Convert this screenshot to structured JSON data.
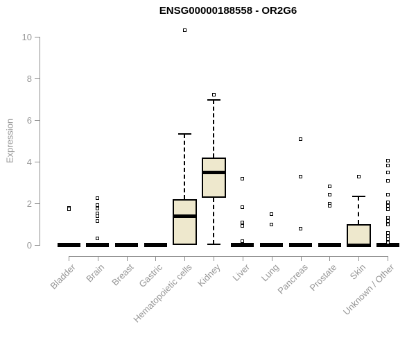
{
  "title": "ENSG00000188558 - OR2G6",
  "colors": {
    "box_fill": "#EEE8CD",
    "box_border": "#000000",
    "axis_line": "#8c8c8c",
    "tick_label": "#969696",
    "title_color": "#000000",
    "background": "#ffffff"
  },
  "chart_data": {
    "type": "boxplot",
    "title": "ENSG00000188558 - OR2G6",
    "xlabel": "",
    "ylabel": "Expression",
    "ylim": [
      0,
      10
    ],
    "yticks": [
      "0",
      "2",
      "4",
      "6",
      "8",
      "10"
    ],
    "ytick_values": [
      0,
      2,
      4,
      6,
      8,
      10
    ],
    "grid": false,
    "legend": false,
    "categories": [
      "Bladder",
      "Brain",
      "Breast",
      "Gastric",
      "Hematopoietic cells",
      "Kidney",
      "Liver",
      "Lung",
      "Pancreas",
      "Prostate",
      "Skin",
      "Unknown / Other"
    ],
    "series": [
      {
        "label": "Bladder",
        "q1": 0,
        "median": 0,
        "q3": 0,
        "whisker_low": 0,
        "whisker_high": 0,
        "outliers": [
          1.78,
          1.72
        ]
      },
      {
        "label": "Brain",
        "q1": 0,
        "median": 0,
        "q3": 0,
        "whisker_low": 0,
        "whisker_high": 0,
        "outliers": [
          2.26,
          1.93,
          1.76,
          1.53,
          1.37,
          1.14,
          0.31
        ]
      },
      {
        "label": "Breast",
        "q1": 0,
        "median": 0,
        "q3": 0,
        "whisker_low": 0,
        "whisker_high": 0,
        "outliers": []
      },
      {
        "label": "Gastric",
        "q1": 0,
        "median": 0,
        "q3": 0,
        "whisker_low": 0,
        "whisker_high": 0,
        "outliers": []
      },
      {
        "label": "Hematopoietic cells",
        "q1": 0,
        "median": 1.37,
        "q3": 2.2,
        "whisker_low": 0,
        "whisker_high": 5.33,
        "outliers": [
          10.33
        ]
      },
      {
        "label": "Kidney",
        "q1": 2.27,
        "median": 3.5,
        "q3": 4.2,
        "whisker_low": 0.03,
        "whisker_high": 6.97,
        "outliers": [
          7.23
        ]
      },
      {
        "label": "Liver",
        "q1": 0,
        "median": 0,
        "q3": 0,
        "whisker_low": 0,
        "whisker_high": 0,
        "outliers": [
          3.2,
          1.83,
          1.1,
          1.0,
          0.92,
          0.17
        ]
      },
      {
        "label": "Lung",
        "q1": 0,
        "median": 0,
        "q3": 0,
        "whisker_low": 0,
        "whisker_high": 0,
        "outliers": [
          1.5,
          1.0
        ]
      },
      {
        "label": "Pancreas",
        "q1": 0,
        "median": 0,
        "q3": 0,
        "whisker_low": 0,
        "whisker_high": 0,
        "outliers": [
          5.1,
          3.27,
          0.77
        ]
      },
      {
        "label": "Prostate",
        "q1": 0,
        "median": 0,
        "q3": 0,
        "whisker_low": 0,
        "whisker_high": 0,
        "outliers": [
          2.82,
          2.43,
          2.0,
          1.9
        ]
      },
      {
        "label": "Skin",
        "q1": 0,
        "median": 0,
        "q3": 1.0,
        "whisker_low": 0,
        "whisker_high": 2.35,
        "outliers": [
          3.27
        ]
      },
      {
        "label": "Unknown / Other",
        "q1": 0,
        "median": 0,
        "q3": 0,
        "whisker_low": 0,
        "whisker_high": 0,
        "outliers": [
          4.04,
          3.82,
          3.49,
          3.1,
          2.43,
          2.04,
          1.88,
          1.71,
          1.32,
          1.16,
          0.99,
          0.6,
          0.43,
          0.27,
          0.12
        ]
      }
    ]
  }
}
